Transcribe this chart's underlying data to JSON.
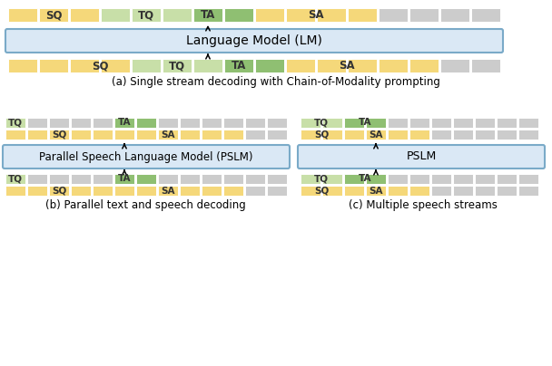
{
  "colors": {
    "yellow": "#F5D87A",
    "green_light": "#C8DFA8",
    "green_dark": "#8FBF72",
    "gray": "#CCCCCC",
    "box_fill": "#DAE8F5",
    "box_edge": "#7AAAC8",
    "white": "#FFFFFF",
    "text": "#333333"
  },
  "caption_a": "(a) Single stream decoding with Chain-of-Modality prompting",
  "caption_b": "(b) Parallel text and speech decoding",
  "caption_c": "(c) Multiple speech streams",
  "lm_label": "Language Model (LM)",
  "pslm_label": "Parallel Speech Language Model (PSLM)",
  "pslm2_label": "PSLM"
}
